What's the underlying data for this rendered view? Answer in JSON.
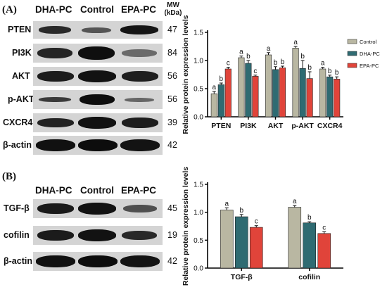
{
  "panel_a": {
    "label": "(A)",
    "columns": [
      "DHA-PC",
      "Control",
      "EPA-PC"
    ],
    "mw_header": [
      "MW",
      "(kDa)"
    ],
    "blot_rows": [
      {
        "name": "PTEN",
        "mw": "47"
      },
      {
        "name": "PI3K",
        "mw": "84"
      },
      {
        "name": "AKT",
        "mw": "56"
      },
      {
        "name": "p-AKT",
        "mw": "56"
      },
      {
        "name": "CXCR4",
        "mw": "39"
      },
      {
        "name": "β-actin",
        "mw": "42"
      }
    ]
  },
  "panel_b": {
    "label": "(B)",
    "columns": [
      "DHA-PC",
      "Control",
      "EPA-PC"
    ],
    "blot_rows": [
      {
        "name": "TGF-β",
        "mw": "45"
      },
      {
        "name": "cofilin",
        "mw": "19"
      },
      {
        "name": "β-actin",
        "mw": "42"
      }
    ]
  },
  "colors": {
    "Control": "#b9b7a2",
    "DHA-PC": "#2f6b72",
    "EPA-PC": "#e0443a"
  },
  "chart_data": [
    {
      "type": "bar",
      "title": "",
      "xlabel": "",
      "ylabel": "Relative protein expression levels",
      "categories": [
        "PTEN",
        "PI3K",
        "AKT",
        "p-AKT",
        "CXCR4"
      ],
      "ylim": [
        0,
        1.5
      ],
      "yticks": [
        "0.0",
        "0.5",
        "1.0",
        "1.5"
      ],
      "legend": "top-right",
      "series": [
        {
          "name": "Control",
          "values": [
            0.41,
            1.05,
            1.1,
            1.22,
            0.85
          ],
          "errors": [
            0.04,
            0.03,
            0.04,
            0.03,
            0.03
          ],
          "letters": [
            "a",
            "a",
            "a",
            "a",
            "a"
          ]
        },
        {
          "name": "DHA-PC",
          "values": [
            0.57,
            0.95,
            0.84,
            0.86,
            0.71
          ],
          "errors": [
            0.03,
            0.05,
            0.05,
            0.14,
            0.03
          ],
          "letters": [
            "b",
            "b",
            "b",
            "b",
            "b"
          ]
        },
        {
          "name": "EPA-PC",
          "values": [
            0.85,
            0.72,
            0.87,
            0.68,
            0.67
          ],
          "errors": [
            0.03,
            0.02,
            0.03,
            0.12,
            0.04
          ],
          "letters": [
            "c",
            "c",
            "b",
            "b",
            "b"
          ]
        }
      ]
    },
    {
      "type": "bar",
      "title": "",
      "xlabel": "",
      "ylabel": "Relative protein expression levels",
      "categories": [
        "TGF-β",
        "cofilin"
      ],
      "ylim": [
        0,
        1.5
      ],
      "yticks": [
        "0.0",
        "0.5",
        "1.0",
        "1.5"
      ],
      "legend": "none",
      "series": [
        {
          "name": "Control",
          "values": [
            1.04,
            1.09
          ],
          "errors": [
            0.04,
            0.03
          ],
          "letters": [
            "a",
            "a"
          ]
        },
        {
          "name": "DHA-PC",
          "values": [
            0.92,
            0.81
          ],
          "errors": [
            0.04,
            0.02
          ],
          "letters": [
            "b",
            "b"
          ]
        },
        {
          "name": "EPA-PC",
          "values": [
            0.73,
            0.62
          ],
          "errors": [
            0.03,
            0.03
          ],
          "letters": [
            "c",
            "c"
          ]
        }
      ]
    }
  ]
}
